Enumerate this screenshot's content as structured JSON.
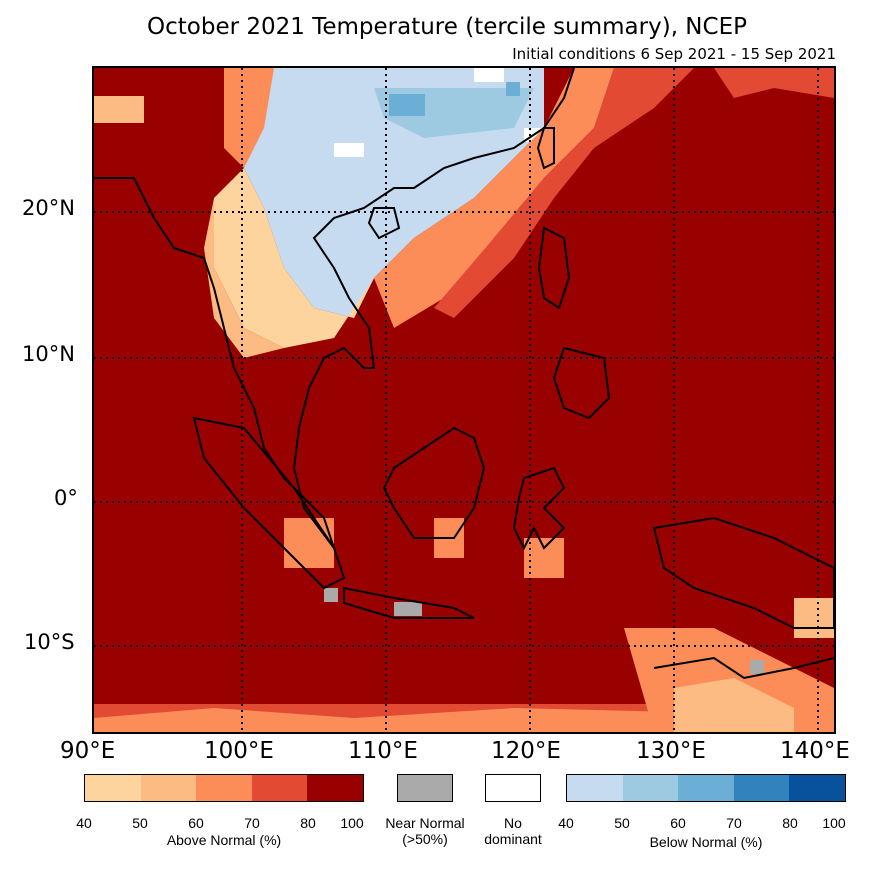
{
  "header": {
    "title": "October 2021 Temperature (tercile summary), NCEP",
    "subtitle": "Initial conditions 6 Sep 2021 - 15 Sep 2021"
  },
  "map": {
    "lat_labels": [
      "20°N",
      "10°N",
      "0°",
      "10°S"
    ],
    "lon_labels": [
      "90°E",
      "100°E",
      "110°E",
      "120°E",
      "130°E",
      "140°E"
    ],
    "colors": {
      "ocean_default": "#990000",
      "land_outline": "#000000"
    }
  },
  "legend": {
    "above_normal": {
      "label": "Above Normal (%)",
      "ticks": [
        "40",
        "50",
        "60",
        "70",
        "80",
        "100"
      ],
      "colors": [
        "#fdd49e",
        "#fdbb84",
        "#fc8d59",
        "#e34a33",
        "#990000"
      ]
    },
    "near_normal": {
      "label_line1": "Near Normal",
      "label_line2": "(>50%)",
      "color": "#aaaaaa"
    },
    "no_dominant": {
      "label_line1": "No",
      "label_line2": "dominant",
      "color": "#ffffff"
    },
    "below_normal": {
      "label": "Below Normal (%)",
      "ticks": [
        "40",
        "50",
        "60",
        "70",
        "80",
        "100"
      ],
      "colors": [
        "#c6dbef",
        "#9ecae1",
        "#6baed6",
        "#3182bd",
        "#08519c"
      ]
    }
  }
}
